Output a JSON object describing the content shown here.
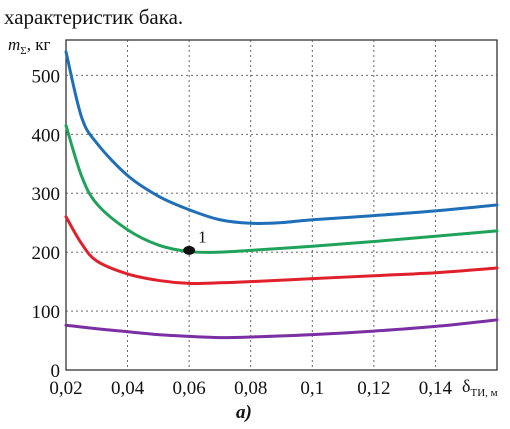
{
  "caption_top": "характеристик бака.",
  "ylabel": {
    "symbol": "m",
    "subscript": "Σ",
    "unit": ", кг"
  },
  "xlabel": {
    "symbol": "δ",
    "subscript": "ТИ, м"
  },
  "panel_label": "а)",
  "chart_data": {
    "type": "line",
    "xlim": [
      0.02,
      0.16
    ],
    "ylim": [
      0,
      560
    ],
    "grid": true,
    "x_ticks": [
      0.02,
      0.04,
      0.06,
      0.08,
      0.1,
      0.12,
      0.14
    ],
    "x_tick_labels": [
      "0,02",
      "0,04",
      "0,06",
      "0,08",
      "0,1",
      "0,12",
      "0,14"
    ],
    "y_ticks": [
      0,
      100,
      200,
      300,
      400,
      500
    ],
    "y_tick_labels": [
      "0",
      "100",
      "200",
      "300",
      "400",
      "500"
    ],
    "series": [
      {
        "color": "#1f6fb8",
        "x": [
          0.02,
          0.025,
          0.03,
          0.04,
          0.05,
          0.06,
          0.07,
          0.08,
          0.09,
          0.1,
          0.12,
          0.14,
          0.16
        ],
        "y": [
          540,
          430,
          385,
          330,
          295,
          272,
          255,
          249,
          250,
          255,
          262,
          270,
          280
        ]
      },
      {
        "color": "#1fa35a",
        "x": [
          0.02,
          0.025,
          0.03,
          0.04,
          0.05,
          0.06,
          0.07,
          0.08,
          0.1,
          0.12,
          0.14,
          0.16
        ],
        "y": [
          415,
          330,
          282,
          238,
          212,
          201,
          200,
          203,
          210,
          218,
          227,
          236
        ]
      },
      {
        "color": "#e0202a",
        "x": [
          0.02,
          0.025,
          0.03,
          0.04,
          0.05,
          0.06,
          0.07,
          0.08,
          0.1,
          0.12,
          0.14,
          0.16
        ],
        "y": [
          260,
          215,
          185,
          163,
          152,
          147,
          148,
          150,
          155,
          160,
          165,
          173
        ]
      },
      {
        "color": "#7a2fa3",
        "x": [
          0.02,
          0.03,
          0.04,
          0.05,
          0.06,
          0.07,
          0.08,
          0.1,
          0.12,
          0.14,
          0.16
        ],
        "y": [
          76,
          70,
          65,
          60,
          57,
          55,
          56,
          60,
          66,
          74,
          85
        ]
      }
    ],
    "annotations": [
      {
        "text": "1",
        "x": 0.06,
        "y": 203
      }
    ]
  }
}
